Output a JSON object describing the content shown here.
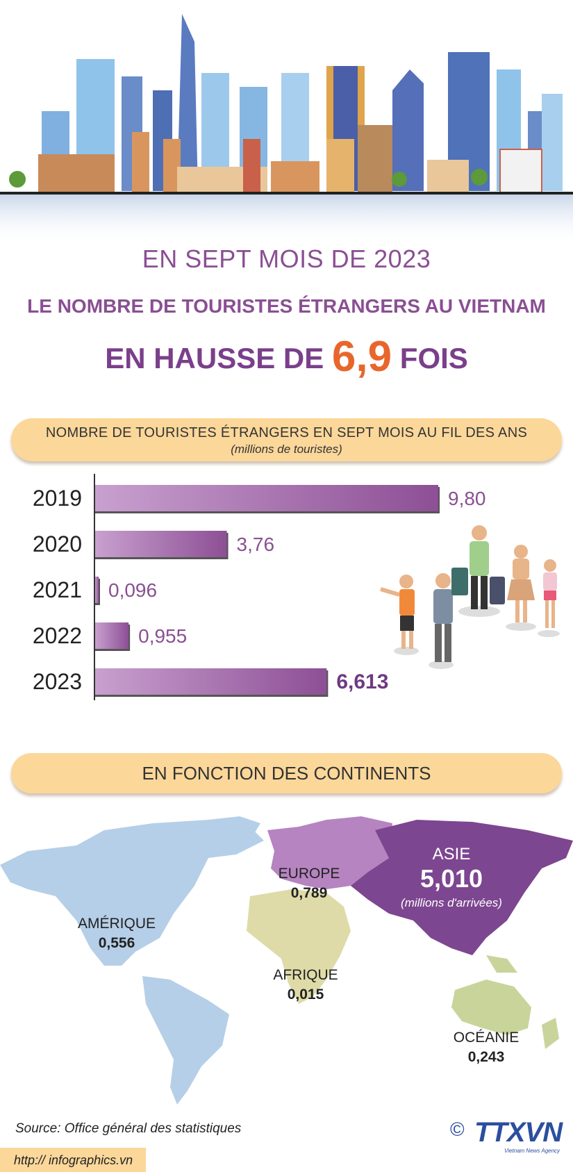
{
  "header": {
    "line1": "EN SEPT MOIS DE 2023",
    "line2": "LE NOMBRE DE TOURISTES ÉTRANGERS AU VIETNAM",
    "line3_prefix": "EN HAUSSE DE",
    "line3_value": "6,9",
    "line3_suffix": "FOIS"
  },
  "section1": {
    "title": "NOMBRE DE TOURISTES ÉTRANGERS EN SEPT MOIS AU FIL DES ANS",
    "subtitle": "(millions de touristes)"
  },
  "section2": {
    "title": "EN FONCTION DES CONTINENTS"
  },
  "chart_data": {
    "type": "bar",
    "orientation": "horizontal",
    "categories": [
      "2019",
      "2020",
      "2021",
      "2022",
      "2023"
    ],
    "values": [
      9.8,
      3.76,
      0.096,
      0.955,
      6.613
    ],
    "value_labels": [
      "9,80",
      "3,76",
      "0,096",
      "0,955",
      "6,613"
    ],
    "highlight": "2023",
    "unit": "millions de touristes",
    "xlim": [
      0,
      9.8
    ],
    "grid": false
  },
  "continents": {
    "asie": {
      "name": "ASIE",
      "value": "5,010",
      "note": "(millions d'arrivées)"
    },
    "europe": {
      "name": "EUROPE",
      "value": "0,789"
    },
    "amerique": {
      "name": "AMÉRIQUE",
      "value": "0,556"
    },
    "afrique": {
      "name": "AFRIQUE",
      "value": "0,015"
    },
    "oceanie": {
      "name": "OCÉANIE",
      "value": "0,243"
    }
  },
  "footer": {
    "source": "Source: Office général des statistiques",
    "url": "http:// infographics.vn",
    "copyright": "©",
    "logo": "TTXVN",
    "logo_sub": "Vietnam News Agency"
  },
  "colors": {
    "bar_start": "#c8a0cf",
    "bar_end": "#8d4f95",
    "accent_orange": "#e8662c",
    "heading_purple": "#8a4f93",
    "pill": "#fbd79a",
    "asia": "#7d4690",
    "europe": "#b684c0",
    "america": "#b6cfe8",
    "africa": "#dedba8",
    "oceania": "#c8d49a"
  }
}
